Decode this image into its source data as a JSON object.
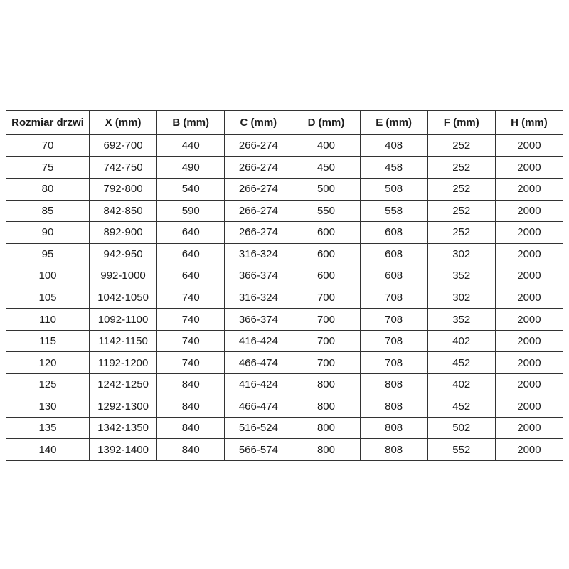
{
  "colors": {
    "background": "#ffffff",
    "text": "#1d1d1d",
    "border": "#333333"
  },
  "table": {
    "columns": [
      "Rozmiar drzwi",
      "X (mm)",
      "B (mm)",
      "C (mm)",
      "D (mm)",
      "E (mm)",
      "F (mm)",
      "H (mm)"
    ],
    "rows": [
      [
        "70",
        "692-700",
        "440",
        "266-274",
        "400",
        "408",
        "252",
        "2000"
      ],
      [
        "75",
        "742-750",
        "490",
        "266-274",
        "450",
        "458",
        "252",
        "2000"
      ],
      [
        "80",
        "792-800",
        "540",
        "266-274",
        "500",
        "508",
        "252",
        "2000"
      ],
      [
        "85",
        "842-850",
        "590",
        "266-274",
        "550",
        "558",
        "252",
        "2000"
      ],
      [
        "90",
        "892-900",
        "640",
        "266-274",
        "600",
        "608",
        "252",
        "2000"
      ],
      [
        "95",
        "942-950",
        "640",
        "316-324",
        "600",
        "608",
        "302",
        "2000"
      ],
      [
        "100",
        "992-1000",
        "640",
        "366-374",
        "600",
        "608",
        "352",
        "2000"
      ],
      [
        "105",
        "1042-1050",
        "740",
        "316-324",
        "700",
        "708",
        "302",
        "2000"
      ],
      [
        "110",
        "1092-1100",
        "740",
        "366-374",
        "700",
        "708",
        "352",
        "2000"
      ],
      [
        "115",
        "1142-1150",
        "740",
        "416-424",
        "700",
        "708",
        "402",
        "2000"
      ],
      [
        "120",
        "1192-1200",
        "740",
        "466-474",
        "700",
        "708",
        "452",
        "2000"
      ],
      [
        "125",
        "1242-1250",
        "840",
        "416-424",
        "800",
        "808",
        "402",
        "2000"
      ],
      [
        "130",
        "1292-1300",
        "840",
        "466-474",
        "800",
        "808",
        "452",
        "2000"
      ],
      [
        "135",
        "1342-1350",
        "840",
        "516-524",
        "800",
        "808",
        "502",
        "2000"
      ],
      [
        "140",
        "1392-1400",
        "840",
        "566-574",
        "800",
        "808",
        "552",
        "2000"
      ]
    ]
  }
}
